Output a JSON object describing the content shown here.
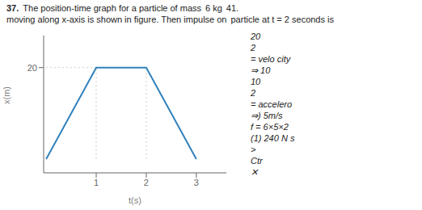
{
  "chart_data": {
    "type": "line",
    "x": [
      0,
      1,
      2,
      3
    ],
    "values": [
      0,
      20,
      20,
      0
    ],
    "xlim": [
      -0.05,
      3.6
    ],
    "ylim": [
      -3,
      27
    ],
    "xticks": [
      1,
      2,
      3
    ],
    "yticks": [
      20
    ],
    "xlabel": "t(s)",
    "ylabel": "x(m)",
    "dotted_lines": [
      {
        "x": [
          1,
          1
        ],
        "y": [
          0,
          20
        ]
      },
      {
        "x": [
          2,
          2
        ],
        "y": [
          0,
          20
        ]
      },
      {
        "x": [
          0,
          1
        ],
        "y": [
          20,
          20
        ]
      }
    ],
    "annotations": [
      "37.",
      "The position-time graph for a particle of mass",
      "6 kg",
      "41.",
      "moving along x-axis is shown in figure. Then impulse on",
      "particle at t = 2 seconds is",
      "20",
      "2",
      "= velo city",
      "⇒ 10",
      "10",
      "2",
      "= accelero",
      "⇒) 5m/s",
      "f = 6×5×2",
      "(1) 240 N s",
      ">",
      "Ctr",
      "✕"
    ]
  }
}
